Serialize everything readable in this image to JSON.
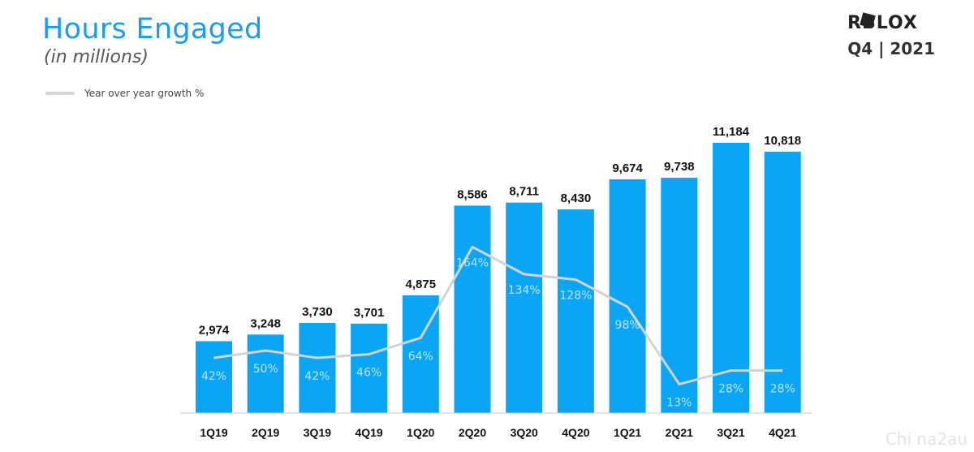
{
  "header": {
    "title": "Hours Engaged",
    "subtitle": "(in millions)",
    "logo_text": "ROBLOX",
    "period": "Q4 | 2021"
  },
  "legend": {
    "label": "Year over year growth %"
  },
  "watermark": "Chi na2au",
  "colors": {
    "bar": "#0aa5f5",
    "line": "#d3d3d3",
    "title": "#1a9cf0"
  },
  "chart_data": {
    "type": "bar",
    "title": "Hours Engaged",
    "subtitle": "(in millions)",
    "categories": [
      "1Q19",
      "2Q19",
      "3Q19",
      "4Q19",
      "1Q20",
      "2Q20",
      "3Q20",
      "4Q20",
      "1Q21",
      "2Q21",
      "3Q21",
      "4Q21"
    ],
    "series": [
      {
        "type": "bar",
        "values": [
          2974,
          3248,
          3730,
          3701,
          4875,
          8586,
          8711,
          8430,
          9674,
          9738,
          11184,
          10818
        ],
        "labels": [
          "2,974",
          "3,248",
          "3,730",
          "3,701",
          "4,875",
          "8,586",
          "8,711",
          "8,430",
          "9,674",
          "9,738",
          "11,184",
          "10,818"
        ]
      },
      {
        "name": "Year over year growth %",
        "type": "line",
        "values": [
          42,
          50,
          42,
          46,
          64,
          164,
          134,
          128,
          98,
          13,
          28,
          28
        ],
        "labels": [
          "42%",
          "50%",
          "42%",
          "46%",
          "64%",
          "164%",
          "134%",
          "128%",
          "98%",
          "13%",
          "28%",
          "28%"
        ]
      }
    ],
    "ylim": [
      0,
      11184
    ],
    "grid": false,
    "legend": "top-left"
  }
}
